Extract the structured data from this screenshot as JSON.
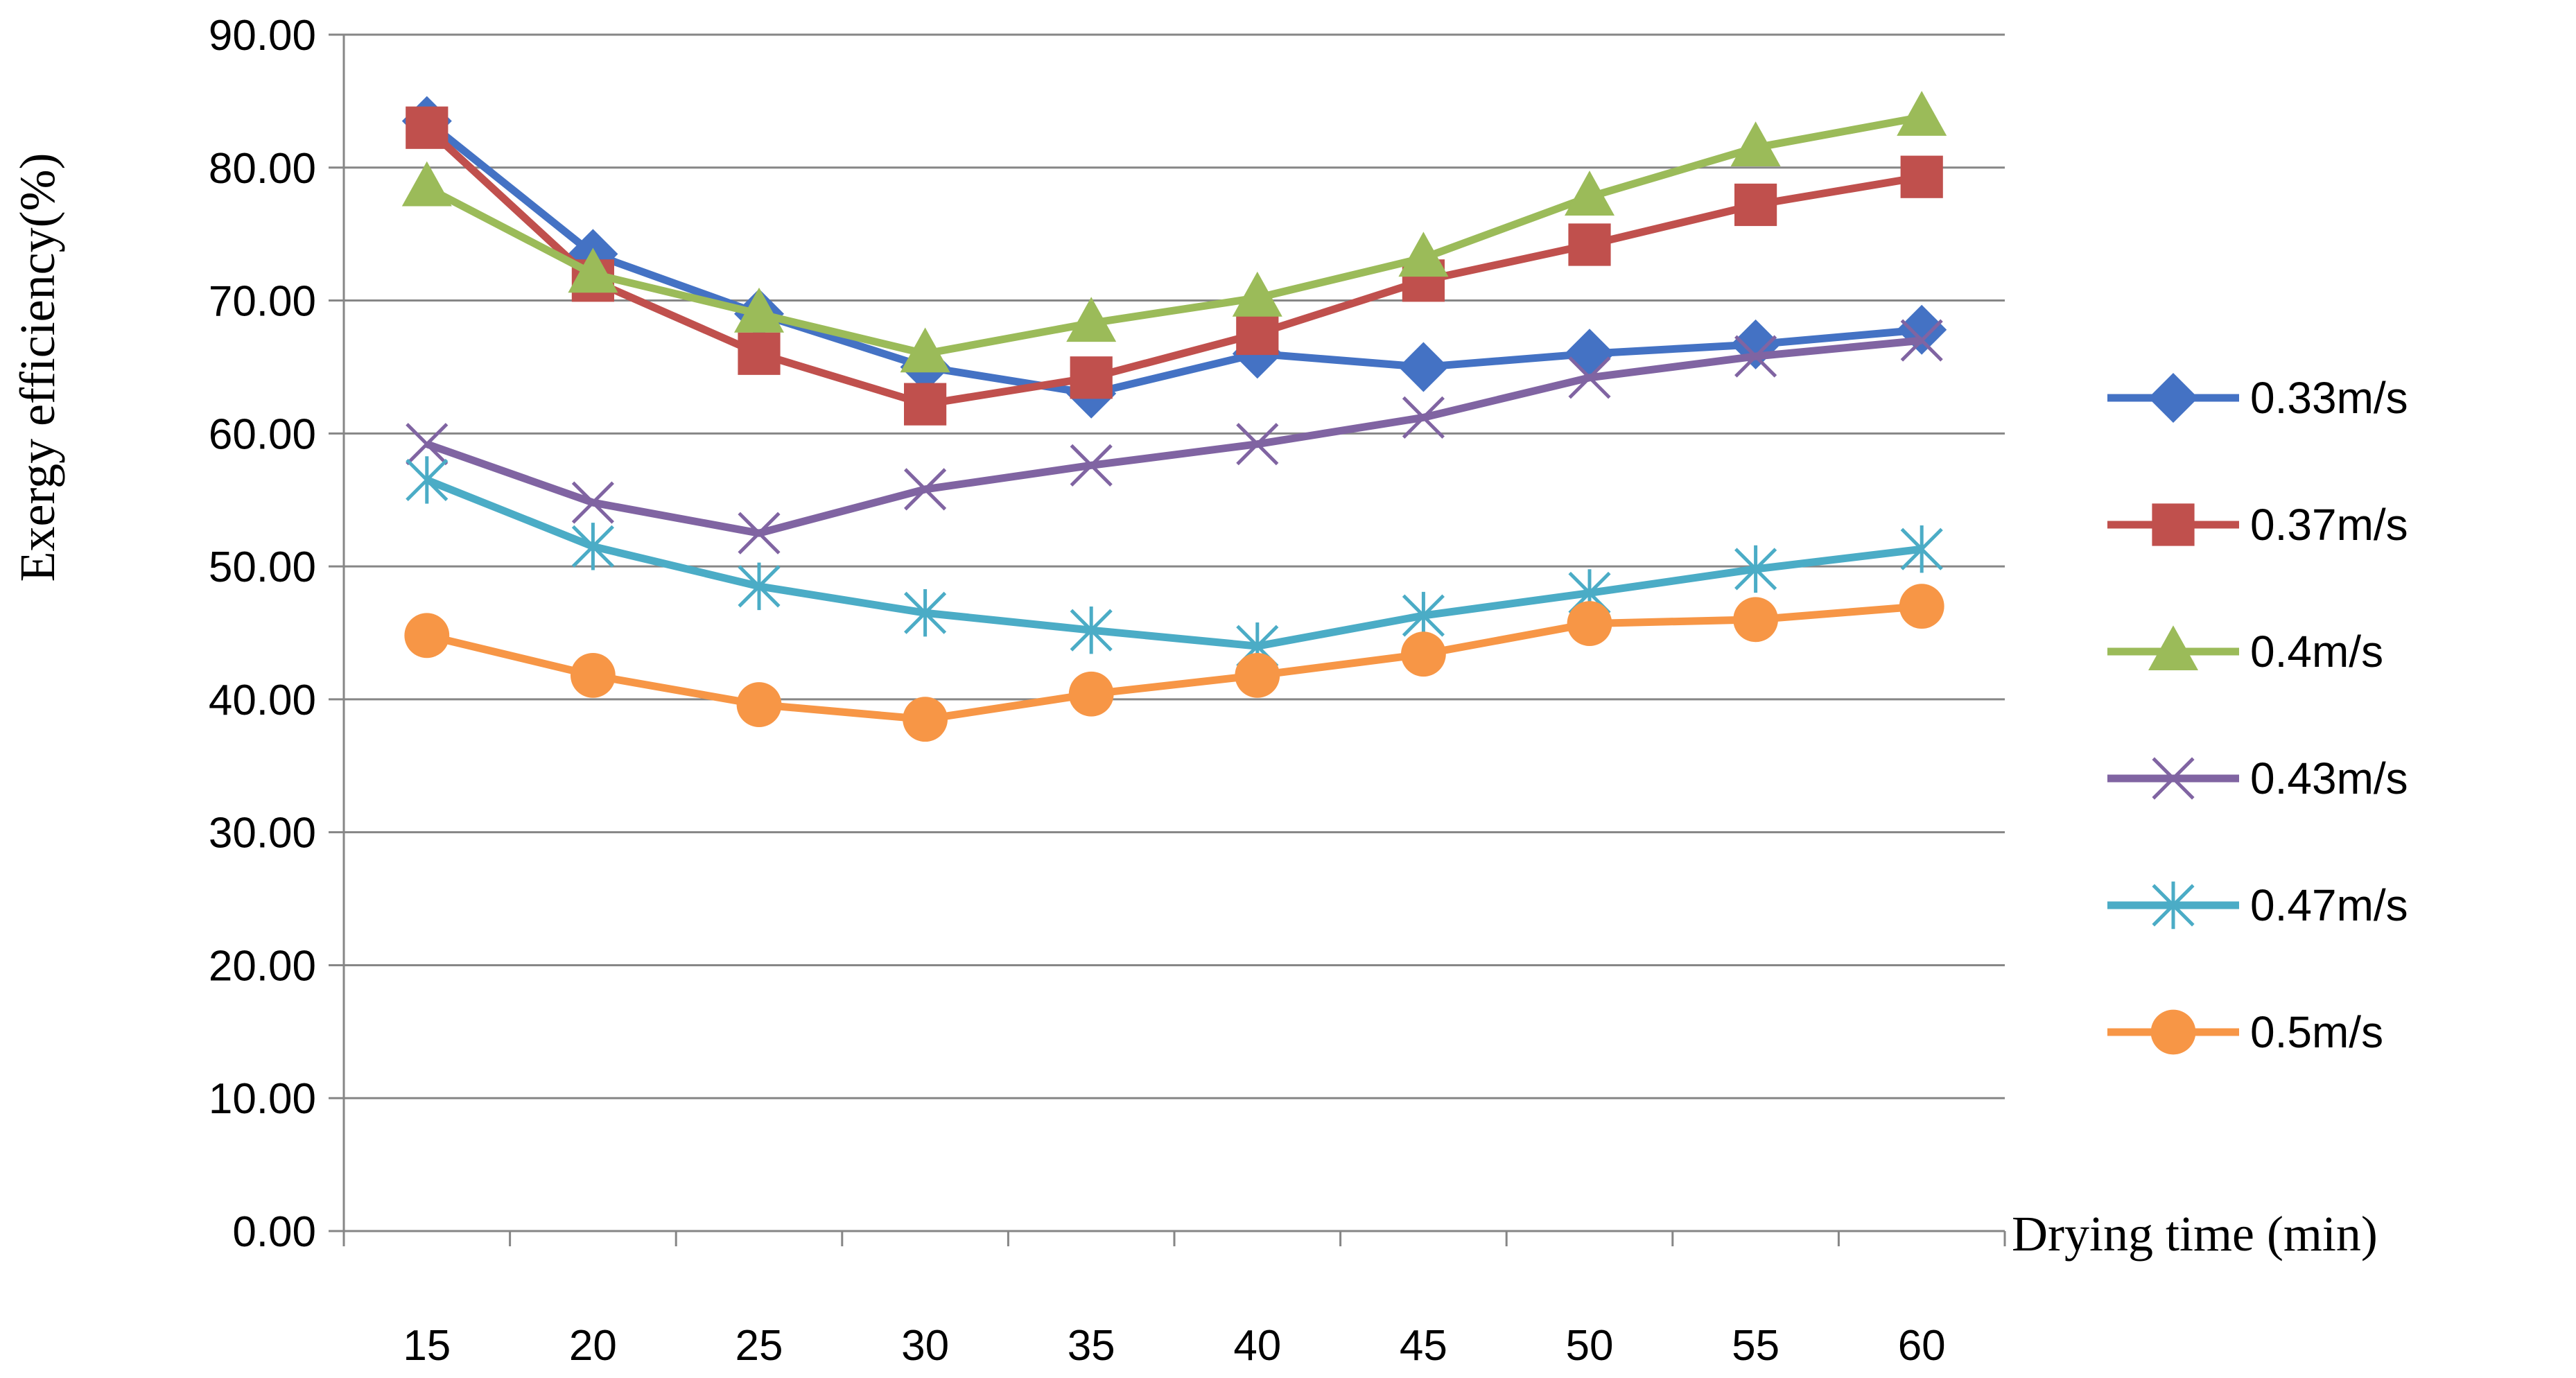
{
  "chart_data": {
    "type": "line",
    "title": "",
    "xlabel": "Drying time (min)",
    "ylabel": "Exergy efficiency(%)",
    "categories": [
      "15",
      "20",
      "25",
      "30",
      "35",
      "40",
      "45",
      "50",
      "55",
      "60"
    ],
    "yticks": [
      "0.00",
      "10.00",
      "20.00",
      "30.00",
      "40.00",
      "50.00",
      "60.00",
      "70.00",
      "80.00",
      "90.00"
    ],
    "ylim": [
      0,
      90
    ],
    "grid": true,
    "legend_position": "right",
    "series": [
      {
        "name": "0.33m/s",
        "color": "#4472C4",
        "marker": "diamond",
        "values": [
          83.5,
          73.5,
          69.0,
          65.0,
          63.0,
          66.0,
          65.0,
          66.0,
          66.7,
          67.8
        ]
      },
      {
        "name": "0.37m/s",
        "color": "#C0504D",
        "marker": "square",
        "values": [
          83.0,
          71.5,
          66.0,
          62.2,
          64.2,
          67.5,
          71.5,
          74.2,
          77.2,
          79.3
        ]
      },
      {
        "name": "0.4m/s",
        "color": "#9BBB59",
        "marker": "triangle",
        "values": [
          78.5,
          72.0,
          69.0,
          66.0,
          68.3,
          70.2,
          73.2,
          77.8,
          81.5,
          83.8
        ]
      },
      {
        "name": "0.43m/s",
        "color": "#8064A2",
        "marker": "x",
        "values": [
          59.2,
          54.8,
          52.5,
          55.8,
          57.6,
          59.2,
          61.2,
          64.2,
          65.8,
          67.0
        ]
      },
      {
        "name": "0.47m/s",
        "color": "#4BACC6",
        "marker": "star",
        "values": [
          56.5,
          51.5,
          48.5,
          46.5,
          45.2,
          44.0,
          46.3,
          48.0,
          49.8,
          51.3
        ]
      },
      {
        "name": "0.5m/s",
        "color": "#F79646",
        "marker": "circle",
        "values": [
          44.8,
          41.8,
          39.6,
          38.5,
          40.4,
          41.8,
          43.4,
          45.7,
          46.0,
          47.0
        ]
      }
    ]
  }
}
